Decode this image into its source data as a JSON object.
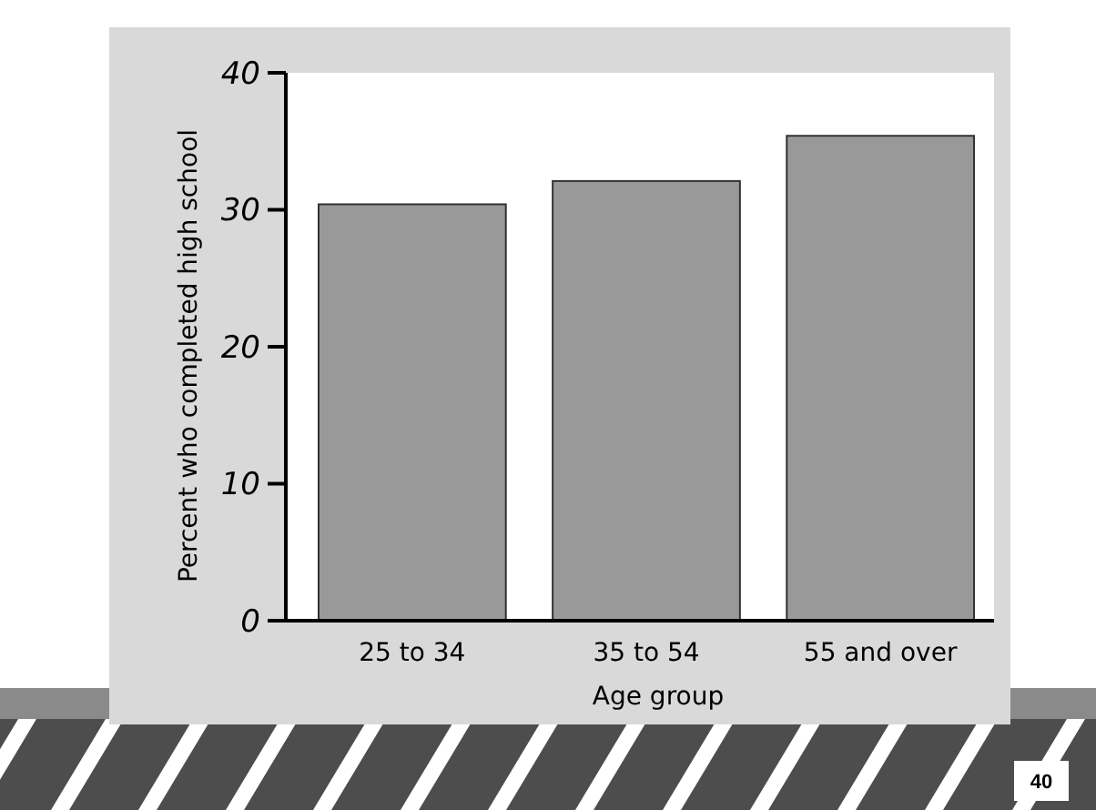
{
  "chart_data": {
    "type": "bar",
    "categories": [
      "25 to 34",
      "35 to 54",
      "55 and over"
    ],
    "values": [
      30.4,
      32.1,
      35.4
    ],
    "color": "#999999",
    "xlabel": "Age group",
    "ylabel": "Percent who completed high school",
    "ylim": [
      0,
      40
    ],
    "yticks": [
      0,
      10,
      20,
      30,
      40
    ],
    "grid": false,
    "annotations": [
      "40"
    ]
  }
}
